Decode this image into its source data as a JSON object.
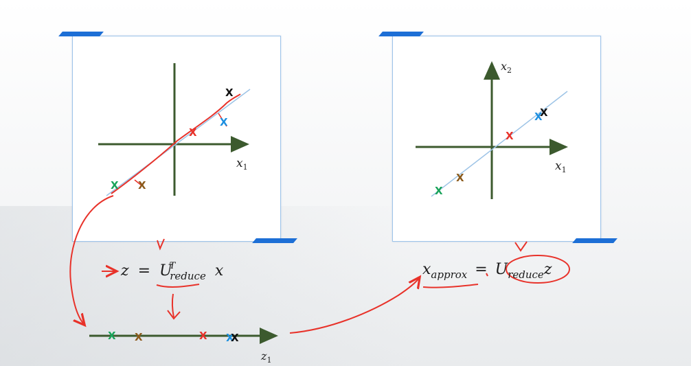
{
  "left_plot": {
    "x_axis_label": "x",
    "x_axis_subscript": "1"
  },
  "right_plot": {
    "x_axis_label": "x",
    "x_axis_subscript": "1",
    "y_axis_label": "x",
    "y_axis_subscript": "2"
  },
  "projection_line": {
    "axis_label": "z",
    "axis_subscript": "1"
  },
  "equation_left": {
    "z": "z",
    "equals": "=",
    "U": "U",
    "subscript": "reduce",
    "superscript": "T",
    "x": "x"
  },
  "equation_right": {
    "x": "x",
    "subscript": "approx",
    "equals": "=",
    "U": "U",
    "U_subscript": "reduce",
    "z": "z"
  },
  "points": [
    {
      "marker": "X",
      "color": "#19a35a"
    },
    {
      "marker": "X",
      "color": "#8b5a1b"
    },
    {
      "marker": "X",
      "color": "#e8322a"
    },
    {
      "marker": "X",
      "color": "#1d8fe0"
    },
    {
      "marker": "X",
      "color": "#111111"
    }
  ],
  "colors": {
    "axis": "#3c5a2e",
    "annotation": "#e8322a",
    "pc_line": "#9cc3e6",
    "accent": "#1d6fd6"
  }
}
